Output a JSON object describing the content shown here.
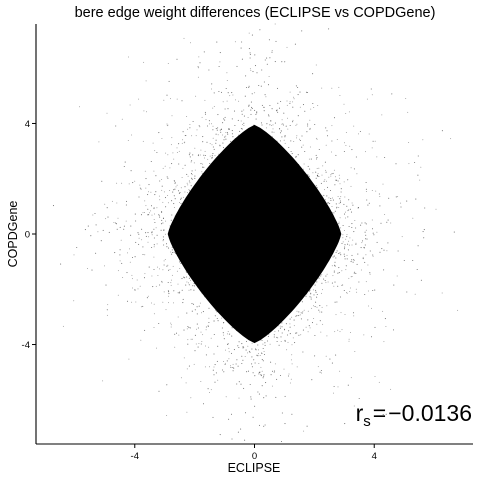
{
  "chart_data": {
    "type": "scatter",
    "title": "bere edge weight differences (ECLIPSE vs COPDGene)",
    "xlabel": "ECLIPSE",
    "ylabel": "COPDGene",
    "xlim": [
      -7.3,
      7.3
    ],
    "ylim": [
      -7.6,
      7.6
    ],
    "x_ticks": [
      -4,
      0,
      4
    ],
    "y_ticks": [
      -4,
      0,
      4
    ],
    "grid": false,
    "legend": "none",
    "point_color": "#000000",
    "distribution": "dense diamond-shaped cloud centred at (0, 0); solid core reaching about ±3 on x and about ±4 on y, sparse scattered points out to about ±6.5",
    "annotation": {
      "symbol": "r",
      "subscript": "s",
      "operator": "=",
      "value": "-0.0136"
    }
  }
}
